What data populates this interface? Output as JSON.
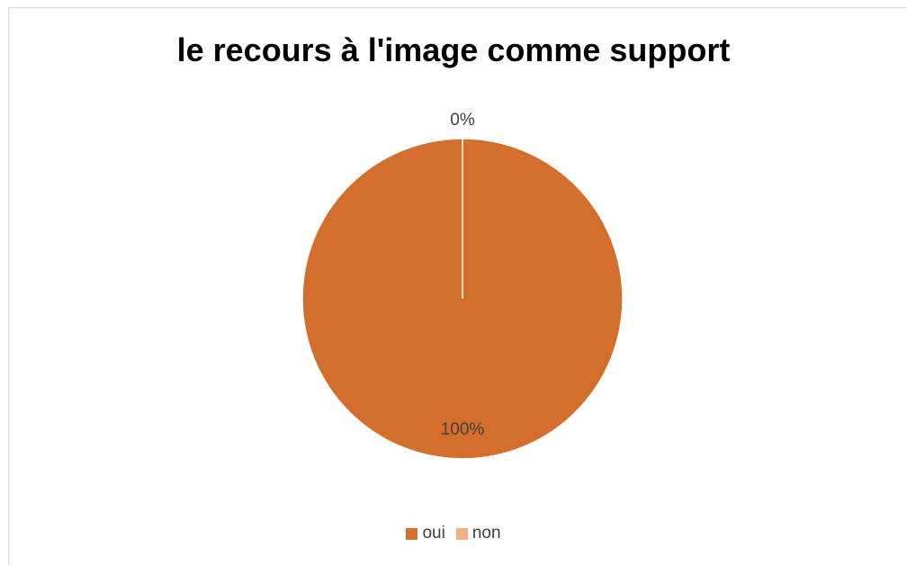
{
  "chart_data": {
    "type": "pie",
    "title": "le recours à l'image comme support",
    "categories": [
      "oui",
      "non"
    ],
    "values": [
      100,
      0
    ],
    "data_labels": [
      "100%",
      "0%"
    ],
    "colors": [
      "#d46e2c",
      "#f4b183"
    ],
    "legend_position": "bottom"
  }
}
